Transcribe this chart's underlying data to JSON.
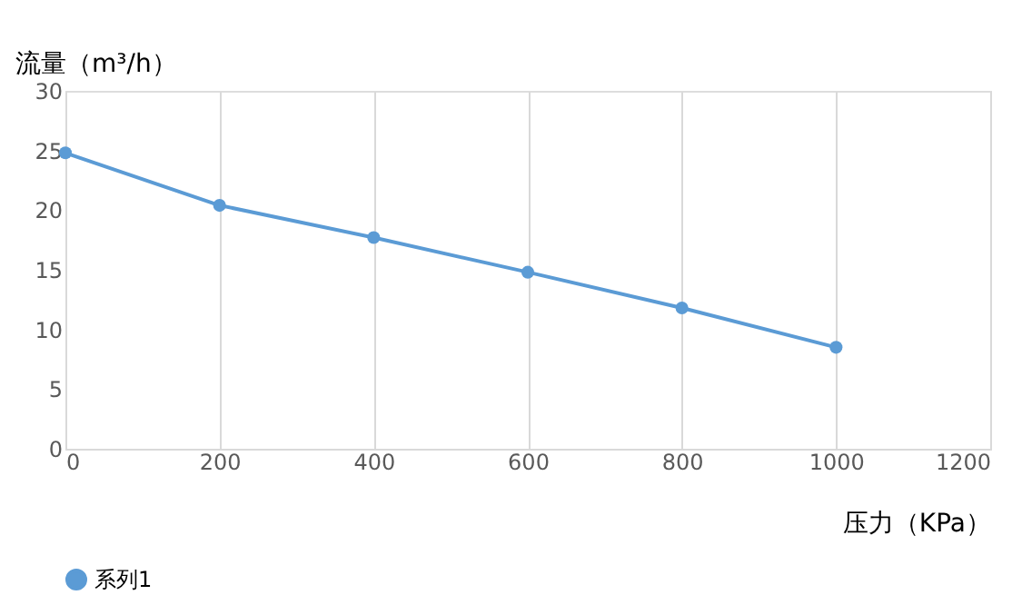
{
  "chart_data": {
    "type": "line",
    "xlabel": "压力（KPa）",
    "ylabel": "流量（m³/h）",
    "x": [
      0,
      200,
      400,
      600,
      800,
      1000
    ],
    "series": [
      {
        "name": "系列1",
        "color": "#5b9bd5",
        "values": [
          24.8,
          20.4,
          17.7,
          14.8,
          11.8,
          8.5
        ]
      }
    ],
    "xlim": [
      0,
      1200
    ],
    "xticks": [
      0,
      200,
      400,
      600,
      800,
      1000,
      1200
    ],
    "ylim": [
      0,
      30
    ],
    "yticks": [
      0,
      5,
      10,
      15,
      20,
      25,
      30
    ],
    "grid": "x",
    "legend": "bottom",
    "marker": "circle",
    "line_style": "solid"
  }
}
